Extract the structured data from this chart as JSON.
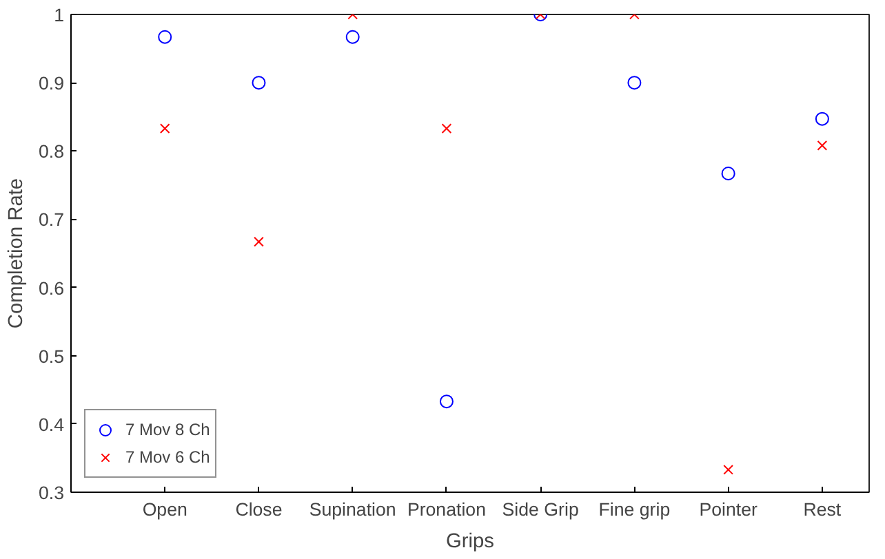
{
  "chart_data": {
    "type": "scatter",
    "xlabel": "Grips",
    "ylabel": "Completion Rate",
    "categories": [
      "Open",
      "Close",
      "Supination",
      "Pronation",
      "Side Grip",
      "Fine grip",
      "Pointer",
      "Rest"
    ],
    "series": [
      {
        "name": "7 Mov 8 Ch",
        "color": "#0000ff",
        "marker": "circle",
        "values": [
          0.967,
          0.9,
          0.967,
          0.433,
          1,
          0.9,
          0.767,
          0.847
        ]
      },
      {
        "name": "7 Mov 6 Ch",
        "color": "#ff0000",
        "marker": "cross",
        "values": [
          0.833,
          0.667,
          1,
          0.833,
          1,
          1,
          0.333,
          0.808
        ]
      }
    ],
    "ylim": [
      0.3,
      1
    ],
    "yticks": [
      0.3,
      0.4,
      0.5,
      0.6,
      0.7,
      0.8,
      0.9,
      1
    ],
    "grid": false,
    "legend": "bottom left"
  }
}
